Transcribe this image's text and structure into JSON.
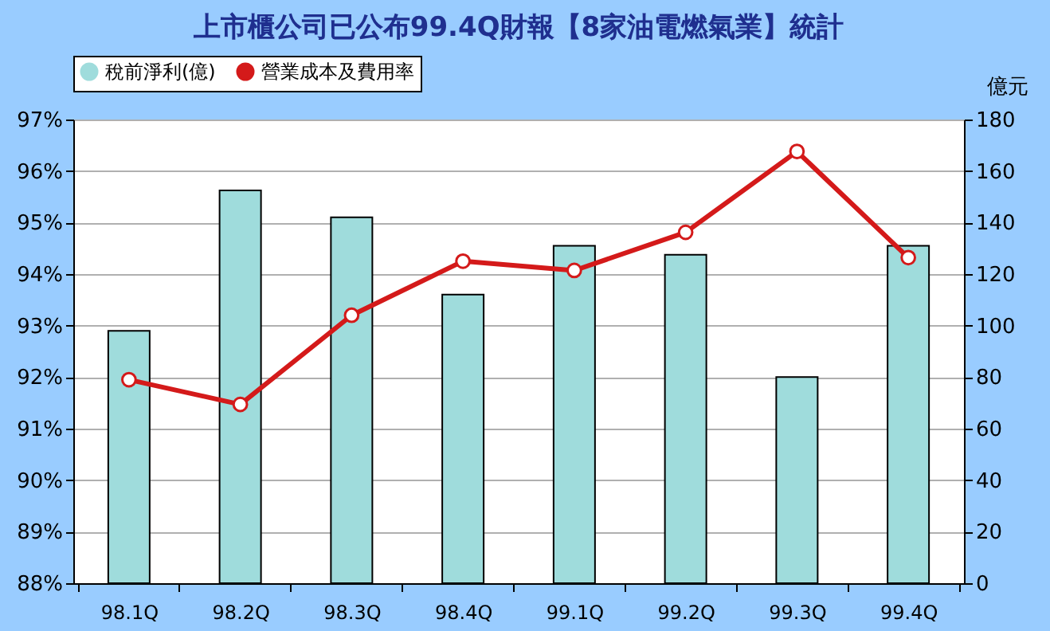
{
  "chart_data": {
    "type": "bar",
    "title": "上市櫃公司已公布99.4Q財報【8家油電燃氣業】統計",
    "y2label": "億元",
    "categories": [
      "98.1Q",
      "98.2Q",
      "98.3Q",
      "98.4Q",
      "99.1Q",
      "99.2Q",
      "99.3Q",
      "99.4Q"
    ],
    "series": [
      {
        "name": "稅前淨利(億)",
        "axis": "y2",
        "color": "#9fdcdc",
        "values": [
          98,
          152.5,
          142,
          112,
          131,
          127.5,
          80,
          131
        ]
      },
      {
        "name": "營業成本及費用率",
        "type": "line",
        "axis": "y",
        "color": "#d41a1a",
        "marker": "circle",
        "values": [
          91.95,
          91.47,
          93.2,
          94.25,
          94.07,
          94.81,
          96.38,
          94.32
        ]
      }
    ],
    "ylim": [
      88,
      97
    ],
    "yticks": [
      {
        "value": 88,
        "label": "88%"
      },
      {
        "value": 89,
        "label": "89%"
      },
      {
        "value": 90,
        "label": "90%"
      },
      {
        "value": 91,
        "label": "91%"
      },
      {
        "value": 92,
        "label": "92%"
      },
      {
        "value": 93,
        "label": "93%"
      },
      {
        "value": 94,
        "label": "94%"
      },
      {
        "value": 95,
        "label": "95%"
      },
      {
        "value": 96,
        "label": "96%"
      },
      {
        "value": 97,
        "label": "97%"
      }
    ],
    "y2lim": [
      0,
      180
    ],
    "y2ticks": [
      0,
      20,
      40,
      60,
      80,
      100,
      120,
      140,
      160,
      180
    ],
    "grid": "y",
    "legend": "top"
  }
}
